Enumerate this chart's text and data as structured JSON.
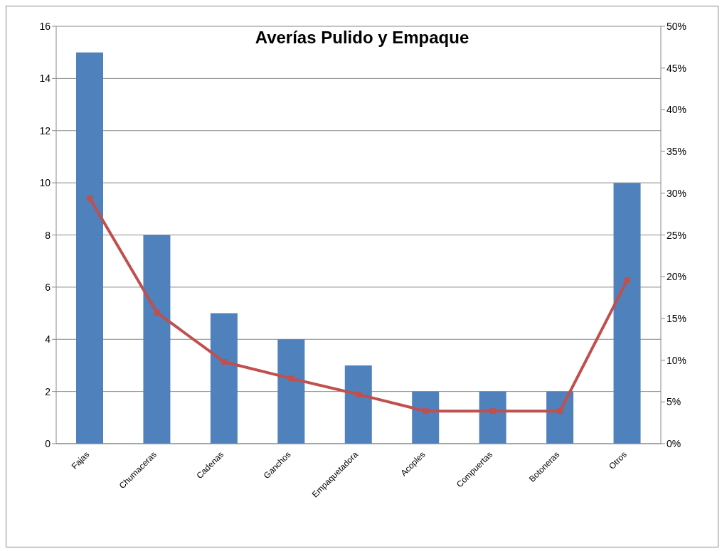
{
  "chart_data": {
    "type": "bar",
    "title": "Averías Pulido y Empaque",
    "categories": [
      "Fajas",
      "Chumaceras",
      "Cadenas",
      "Ganchos",
      "Empaquetadora",
      "Acoples",
      "Compuertas",
      "Botoneras",
      "Otros"
    ],
    "series": [
      {
        "color": "#4f81bd",
        "values": [
          15,
          8,
          5,
          4,
          3,
          2,
          2,
          2,
          10
        ]
      },
      {
        "type": "line",
        "axis": "y2",
        "color": "#c0504d",
        "marker": "square",
        "values": [
          29.4,
          15.7,
          9.8,
          7.8,
          5.9,
          3.9,
          3.9,
          3.9,
          19.6
        ]
      }
    ],
    "ylim": [
      0,
      16
    ],
    "yticks": [
      0,
      2,
      4,
      6,
      8,
      10,
      12,
      14,
      16
    ],
    "y2lim": [
      0,
      50
    ],
    "y2ticks": [
      {
        "value": 0,
        "label": "0%"
      },
      {
        "value": 5,
        "label": "5%"
      },
      {
        "value": 10,
        "label": "10%"
      },
      {
        "value": 15,
        "label": "15%"
      },
      {
        "value": 20,
        "label": "20%"
      },
      {
        "value": 25,
        "label": "25%"
      },
      {
        "value": 30,
        "label": "30%"
      },
      {
        "value": 35,
        "label": "35%"
      },
      {
        "value": 40,
        "label": "40%"
      },
      {
        "value": 45,
        "label": "45%"
      },
      {
        "value": 50,
        "label": "50%"
      }
    ],
    "grid": "y",
    "legend": false
  }
}
